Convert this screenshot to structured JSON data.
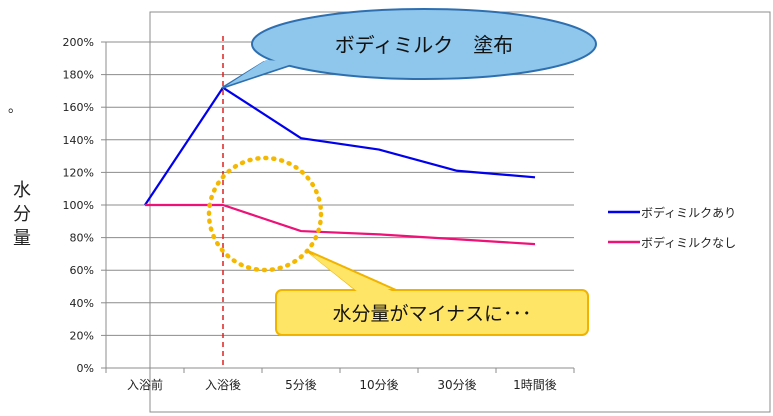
{
  "page": {
    "stray_mark": "。"
  },
  "chart_data": {
    "type": "line",
    "categories": [
      "入浴前",
      "入浴後",
      "5分後",
      "10分後",
      "30分後",
      "1時間後"
    ],
    "ylabel": "水分量",
    "ylim": [
      0,
      2.0
    ],
    "yticks": [
      "0%",
      "20%",
      "40%",
      "60%",
      "80%",
      "100%",
      "120%",
      "140%",
      "160%",
      "180%",
      "200%"
    ],
    "grid": true,
    "legend_position": "right",
    "series": [
      {
        "name": "ボディミルクあり",
        "color": "#0000ee",
        "values": [
          1.0,
          1.72,
          1.41,
          1.34,
          1.21,
          1.17
        ]
      },
      {
        "name": "ボディミルクなし",
        "color": "#ee1177",
        "values": [
          1.0,
          1.0,
          0.84,
          0.82,
          0.79,
          0.76
        ]
      }
    ],
    "marker_line": {
      "category": "入浴後",
      "color": "#dd2222",
      "style": "dashed"
    },
    "callouts": {
      "top": {
        "text": "ボディミルク　塗布",
        "fill": "#8ec6ec",
        "stroke": "#2e6fb0"
      },
      "bottom": {
        "text": "水分量がマイナスに･･･",
        "fill": "#ffe566",
        "stroke": "#f0b400"
      }
    },
    "highlight_circle": {
      "color": "#f5b800",
      "style": "dotted"
    }
  }
}
